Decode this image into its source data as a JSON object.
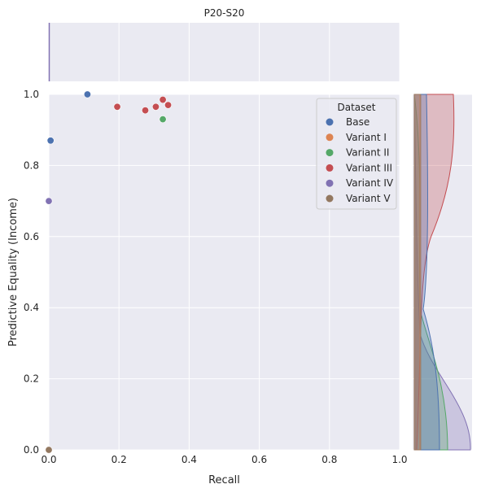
{
  "chart_data": {
    "type": "scatter",
    "title": "P20-S20",
    "xlabel": "Recall",
    "ylabel": "Predictive Equality (Income)",
    "xlim": [
      0,
      1
    ],
    "ylim": [
      0,
      1
    ],
    "xticks": [
      "0.0",
      "0.2",
      "0.4",
      "0.6",
      "0.8",
      "1.0"
    ],
    "yticks": [
      "0.0",
      "0.2",
      "0.4",
      "0.6",
      "0.8",
      "1.0"
    ],
    "grid": true,
    "legend": {
      "title": "Dataset",
      "placement": "top-right"
    },
    "series": [
      {
        "name": "Base",
        "color": "#4C72B0",
        "points": [
          [
            0.0,
            0.0
          ],
          [
            0.005,
            0.87
          ],
          [
            0.11,
            1.0
          ]
        ]
      },
      {
        "name": "Variant I",
        "color": "#DD8452",
        "points": [
          [
            0.0,
            0.0
          ]
        ]
      },
      {
        "name": "Variant II",
        "color": "#55A868",
        "points": [
          [
            0.325,
            0.93
          ]
        ]
      },
      {
        "name": "Variant III",
        "color": "#C44E52",
        "points": [
          [
            0.0,
            0.0
          ],
          [
            0.195,
            0.965
          ],
          [
            0.275,
            0.955
          ],
          [
            0.305,
            0.965
          ],
          [
            0.325,
            0.985
          ],
          [
            0.34,
            0.97
          ]
        ]
      },
      {
        "name": "Variant IV",
        "color": "#8172B3",
        "points": [
          [
            0.0,
            0.7
          ]
        ]
      },
      {
        "name": "Variant V",
        "color": "#937860",
        "points": [
          [
            0.0,
            0.0
          ]
        ]
      }
    ]
  }
}
